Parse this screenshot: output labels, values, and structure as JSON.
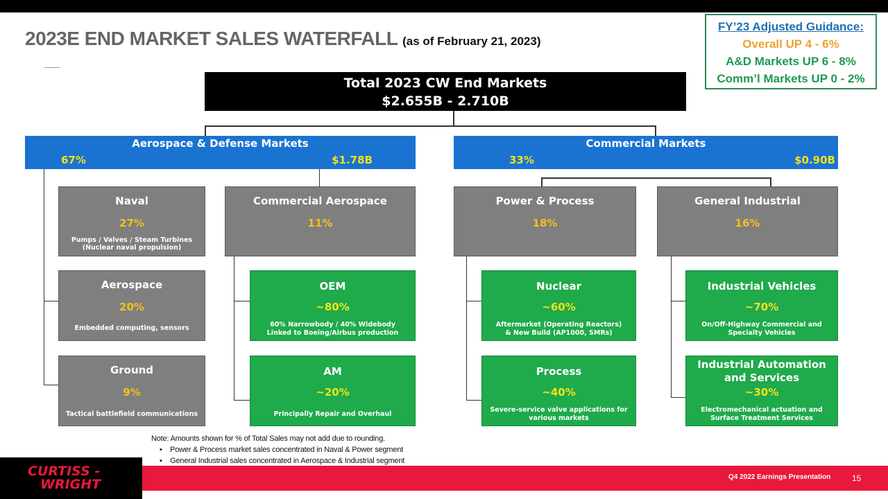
{
  "title": {
    "main": "2023E END MARKET SALES WATERFALL",
    "sub": "(as of February 21, 2023)"
  },
  "guidance": {
    "heading": "FY’23 Adjusted Guidance:",
    "overall": "Overall UP 4 - 6%",
    "ad": "A&D Markets UP 6 - 8%",
    "comm": "Comm’l Markets UP 0 - 2%"
  },
  "total": {
    "title": "Total 2023 CW End Markets",
    "value": "$2.655B - 2.710B"
  },
  "segments": {
    "ad": {
      "name": "Aerospace & Defense Markets",
      "pct": "67%",
      "amount": "$1.78B"
    },
    "commercial": {
      "name": "Commercial Markets",
      "pct": "33%",
      "amount": "$0.90B"
    }
  },
  "markets": {
    "naval": {
      "title": "Naval",
      "pct": "27%",
      "desc1": "Pumps / Valves / Steam Turbines",
      "desc2": "(Nuclear naval propulsion)"
    },
    "aerospace": {
      "title": "Aerospace",
      "pct": "20%",
      "desc1": "Embedded computing, sensors"
    },
    "ground": {
      "title": "Ground",
      "pct": "9%",
      "desc1": "Tactical battlefield communications"
    },
    "comm_aero": {
      "title": "Commercial Aerospace",
      "pct": "11%"
    },
    "oem": {
      "title": "OEM",
      "pct": "~80%",
      "desc1": "60% Narrowbody / 40% Widebody",
      "desc2": "Linked to Boeing/Airbus production"
    },
    "am": {
      "title": "AM",
      "pct": "~20%",
      "desc1": "Principally Repair and Overhaul"
    },
    "power": {
      "title": "Power & Process",
      "pct": "18%"
    },
    "nuclear": {
      "title": "Nuclear",
      "pct": "~60%",
      "desc1": "Aftermarket (Operating Reactors)",
      "desc2": "& New Build (AP1000, SMRs)"
    },
    "process": {
      "title": "Process",
      "pct": "~40%",
      "desc1": "Severe-service valve applications for",
      "desc2": "various markets"
    },
    "general": {
      "title": "General Industrial",
      "pct": "16%"
    },
    "vehicles": {
      "title": "Industrial Vehicles",
      "pct": "~70%",
      "desc1": "On/Off-Highway Commercial and",
      "desc2": "Specialty Vehicles"
    },
    "automation": {
      "title1": "Industrial Automation",
      "title2": "and Services",
      "pct": "~30%",
      "desc1": "Electromechanical actuation and",
      "desc2": "Surface Treatment Services"
    }
  },
  "notes": {
    "note": "Note:  Amounts shown for % of Total Sales may not add due to rounding.",
    "b1": "Power & Process market sales concentrated  in Naval & Power segment",
    "b2": "General Industrial  sales concentrated  in Aerospace & Industrial  segment"
  },
  "footer": {
    "logo1": "CURTISS -",
    "logo2": "WRIGHT",
    "label": "Q4 2022 Earnings Presentation",
    "page": "15"
  }
}
